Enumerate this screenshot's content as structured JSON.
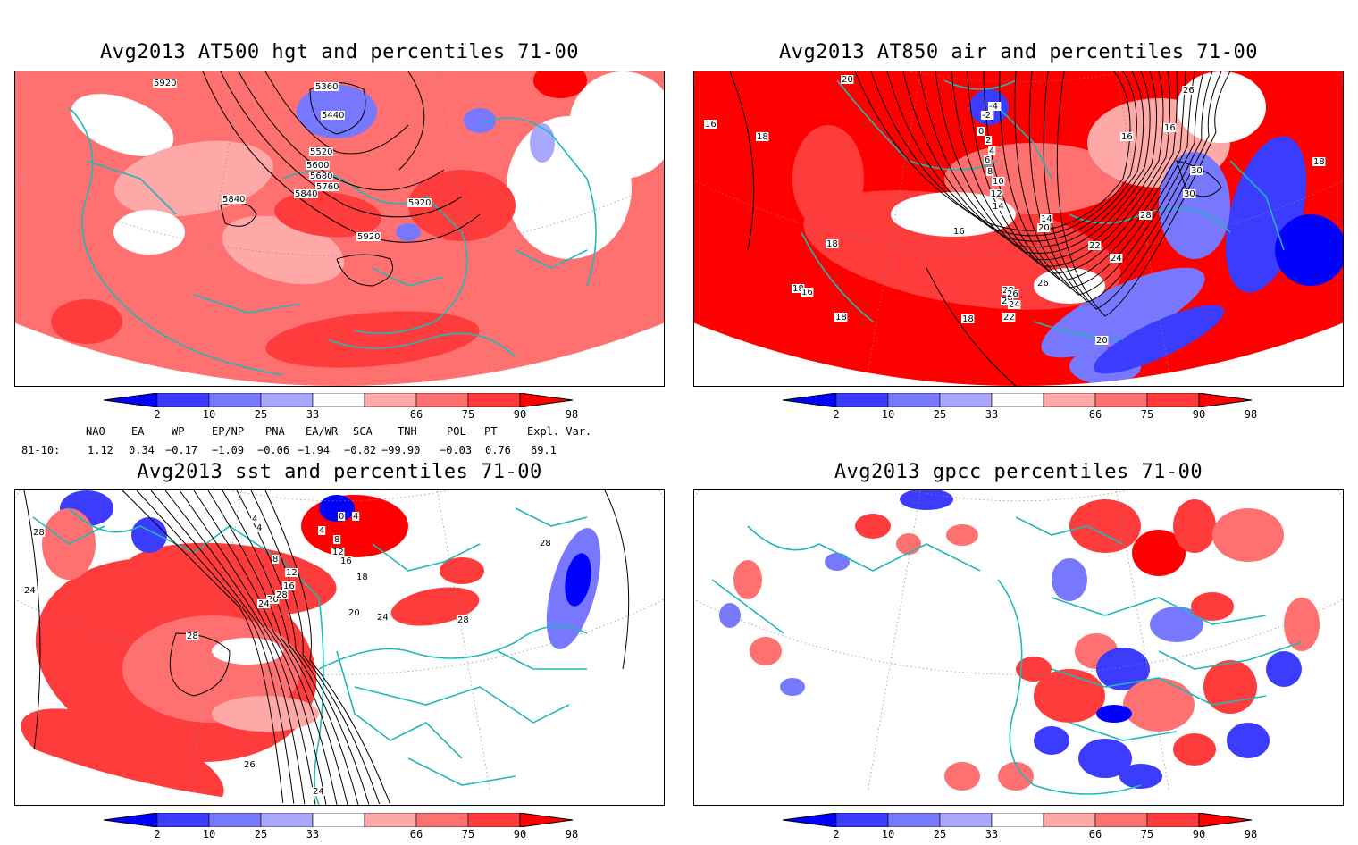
{
  "panels": [
    {
      "title": "Avg2013 AT500 hgt and percentiles 71-00",
      "contour_labels": [
        "5920",
        "5360",
        "5440",
        "5520",
        "5600",
        "5680",
        "5760",
        "5840",
        "5920",
        "5840",
        "5920"
      ]
    },
    {
      "title": "Avg2013 AT850 air and percentiles 71-00",
      "contour_labels": [
        "20",
        "16",
        "18",
        "16",
        "18",
        "18",
        "18",
        "16",
        "18",
        "-4",
        "-2",
        "0",
        "2",
        "4",
        "6",
        "8",
        "10",
        "12",
        "14",
        "16",
        "14",
        "20",
        "22",
        "24",
        "26",
        "28",
        "28",
        "26",
        "24",
        "22",
        "20",
        "16",
        "30",
        "30",
        "26",
        "28",
        "18"
      ]
    },
    {
      "title": "Avg2013 sst and percentiles 71-00",
      "contour_labels": [
        "28",
        "24",
        "4",
        "4",
        "8",
        "12",
        "16",
        "20",
        "24",
        "28",
        "0",
        "4",
        "4",
        "8",
        "12",
        "16",
        "18",
        "20",
        "24",
        "28",
        "28",
        "28",
        "26",
        "24"
      ]
    },
    {
      "title": "Avg2013 gpcc percentiles 71-00",
      "contour_labels": []
    }
  ],
  "colorbar": {
    "labels": [
      "2",
      "10",
      "25",
      "33",
      "66",
      "75",
      "90",
      "98"
    ],
    "colors": [
      "#0000ff",
      "#3c3cff",
      "#7878ff",
      "#a8a8ff",
      "#ffffff",
      "#ffa8a8",
      "#ff7070",
      "#ff3c3c",
      "#ff0000"
    ]
  },
  "indices": {
    "headers": [
      "NAO",
      "EA",
      "WP",
      "EP/NP",
      "PNA",
      "EA/WR",
      "SCA",
      "TNH",
      "POL",
      "PT",
      "Expl. Var."
    ],
    "row_label": "81-10:",
    "values": [
      "1.12",
      "0.34",
      "−0.17",
      "−1.09",
      "−0.06",
      "−1.94",
      "−0.82",
      "−99.90",
      "−0.03",
      "0.76",
      "69.1"
    ]
  },
  "colors": {
    "coast": "#20b8b8",
    "contour": "#000000",
    "grid": "#888888"
  }
}
